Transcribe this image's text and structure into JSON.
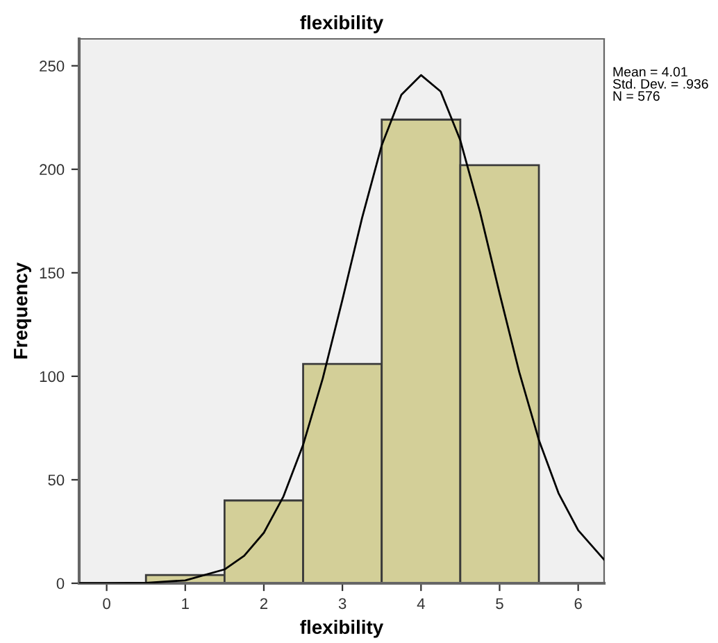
{
  "chart_data": {
    "type": "histogram",
    "title": "flexibility",
    "xlabel": "flexibility",
    "ylabel": "Frequency",
    "bins": [
      0.5,
      1.5,
      2.5,
      3.5,
      4.5,
      5.5
    ],
    "values": [
      4,
      40,
      106,
      224,
      202
    ],
    "color": "#d3cf98",
    "series": [
      {
        "type": "line",
        "color": "#000000",
        "x": [
          -0.35,
          0,
          0.5,
          1,
          1.5,
          1.75,
          2,
          2.25,
          2.5,
          2.75,
          3,
          3.25,
          3.5,
          3.75,
          4,
          4.25,
          4.5,
          4.75,
          5,
          5.25,
          5.5,
          5.75,
          6,
          6.33
        ],
        "values": [
          0,
          0,
          0.2,
          1.4,
          6.7,
          13.3,
          24.4,
          42,
          66.9,
          99,
          137,
          176.5,
          211.6,
          236,
          245.5,
          237.6,
          214,
          179.5,
          140,
          102,
          69.2,
          43.5,
          25.6,
          11.4
        ]
      }
    ],
    "annotations": [
      "Mean = 4.01\nStd. Dev. = .936\nN = 576"
    ],
    "xlim": [
      -0.35,
      6.33
    ],
    "xticks": [
      0,
      1,
      2,
      3,
      4,
      5,
      6
    ],
    "ylim": [
      0,
      263
    ],
    "yticks": [
      0,
      50,
      100,
      150,
      200,
      250
    ],
    "grid": false,
    "legend": false
  }
}
